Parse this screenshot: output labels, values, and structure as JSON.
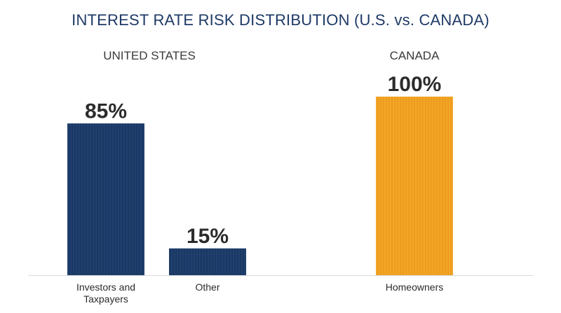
{
  "title": "INTEREST RATE RISK DISTRIBUTION (U.S. vs. CANADA)",
  "chart_data": {
    "type": "bar",
    "title": "INTEREST RATE RISK DISTRIBUTION (U.S. vs. CANADA)",
    "groups": [
      {
        "name": "UNITED STATES",
        "color": "#1c3a66",
        "bars": [
          {
            "category": [
              "Investors and",
              "Taxpayers"
            ],
            "value": 85,
            "label": "85%"
          },
          {
            "category": [
              "Other"
            ],
            "value": 15,
            "label": "15%"
          }
        ]
      },
      {
        "name": "CANADA",
        "color": "#f0a01e",
        "bars": [
          {
            "category": [
              "Homeowners"
            ],
            "value": 100,
            "label": "100%"
          }
        ]
      }
    ],
    "unit": "%",
    "ylim": [
      0,
      100
    ],
    "grid": false
  }
}
